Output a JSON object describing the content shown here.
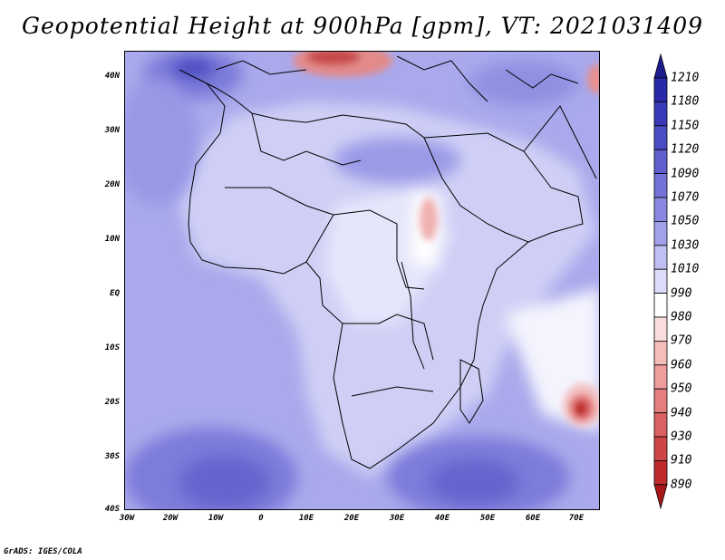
{
  "title": "Geopotential Height at 900hPa [gpm], VT: 2021031409",
  "credit": "GrADS: IGES/COLA",
  "axes": {
    "lat_ticks": [
      "40N",
      "30N",
      "20N",
      "10N",
      "EQ",
      "10S",
      "20S",
      "30S",
      "40S"
    ],
    "lon_ticks": [
      "30W",
      "20W",
      "10W",
      "0",
      "10E",
      "20E",
      "30E",
      "40E",
      "50E",
      "60E",
      "70E"
    ],
    "lat_range": [
      -40,
      45
    ],
    "lon_range": [
      -30,
      75
    ]
  },
  "colorbar": {
    "labels": [
      "1210",
      "1180",
      "1150",
      "1120",
      "1090",
      "1070",
      "1050",
      "1030",
      "1010",
      "990",
      "980",
      "970",
      "960",
      "950",
      "940",
      "930",
      "910",
      "890"
    ],
    "colors": [
      "#1c1c8f",
      "#2828a8",
      "#3a3ab8",
      "#4c4cc4",
      "#5f5fcf",
      "#7373d8",
      "#8888e0",
      "#a2a2ea",
      "#bfbff3",
      "#dcdcfa",
      "#ffffff",
      "#fbdcdc",
      "#f5bcbc",
      "#ee9c9c",
      "#e57f7f",
      "#db6262",
      "#cf4646",
      "#bf2b2b",
      "#a81818"
    ]
  }
}
